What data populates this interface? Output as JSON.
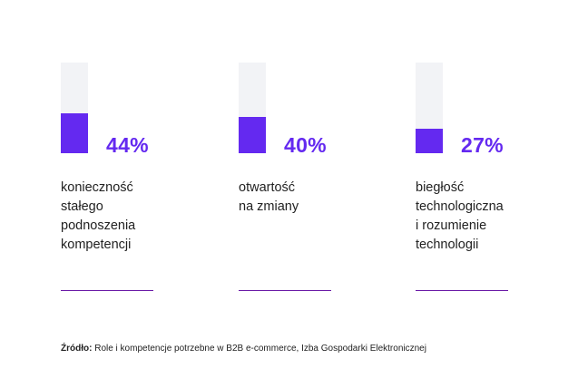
{
  "chart_data": {
    "type": "bar",
    "categories": [
      "konieczność stałego podnoszenia kompetencji",
      "otwartość na zmiany",
      "biegłość technologiczna i rozumienie technologii"
    ],
    "values": [
      44,
      40,
      27
    ],
    "value_labels": [
      "44%",
      "40%",
      "27%"
    ],
    "label_lines": [
      [
        "konieczność",
        "stałego",
        "podnoszenia",
        "kompetencji"
      ],
      [
        "otwartość",
        "na zmiany"
      ],
      [
        "biegłość",
        "technologiczna",
        "i rozumienie",
        "technologii"
      ]
    ],
    "ylim": [
      0,
      100
    ],
    "title": "",
    "xlabel": "",
    "ylabel": ""
  },
  "source": {
    "prefix": "Źródło:",
    "text": " Role i kompetencje potrzebne w B2B e-commerce, Izba Gospodarki Elektronicznej"
  },
  "colors": {
    "accent": "#6429f0",
    "track": "#f2f3f6",
    "rule": "#6a1aa6",
    "text": "#222222"
  }
}
